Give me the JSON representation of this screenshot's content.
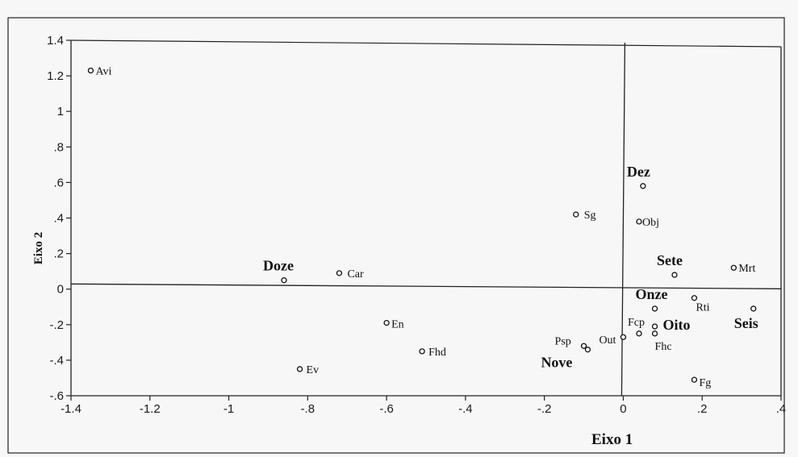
{
  "chart_data": {
    "type": "scatter",
    "xlabel": "Eixo 1",
    "ylabel": "Eixo 2",
    "xlim": [
      -1.4,
      0.4
    ],
    "ylim": [
      -0.6,
      1.4
    ],
    "xticks": [
      "-1.4",
      "-1.2",
      "-1",
      "-.8",
      "-.6",
      "-.4",
      "-.2",
      "0",
      ".2",
      ".4"
    ],
    "yticks": [
      "-.6",
      "-.4",
      "-.2",
      "0",
      ".2",
      ".4",
      ".6",
      ".8",
      "1",
      "1.2",
      "1.4"
    ],
    "grid": false,
    "reference_lines": {
      "horizontal_y": 0.02,
      "vertical_x": 0.0
    },
    "points": [
      {
        "label": "Avi",
        "x": -1.35,
        "y": 1.23,
        "group": "category"
      },
      {
        "label": "Dez",
        "x": 0.05,
        "y": 0.58,
        "group": "class"
      },
      {
        "label": "Sg",
        "x": -0.12,
        "y": 0.42,
        "group": "category"
      },
      {
        "label": "Obj",
        "x": 0.04,
        "y": 0.38,
        "group": "category"
      },
      {
        "label": "Doze",
        "x": -0.86,
        "y": 0.05,
        "group": "class"
      },
      {
        "label": "Car",
        "x": -0.72,
        "y": 0.09,
        "group": "category"
      },
      {
        "label": "Sete",
        "x": 0.13,
        "y": 0.08,
        "group": "class"
      },
      {
        "label": "Mrt",
        "x": 0.28,
        "y": 0.12,
        "group": "category"
      },
      {
        "label": "Onze",
        "x": 0.08,
        "y": -0.11,
        "group": "class"
      },
      {
        "label": "Rti",
        "x": 0.18,
        "y": -0.05,
        "group": "category"
      },
      {
        "label": "Seis",
        "x": 0.33,
        "y": -0.11,
        "group": "class"
      },
      {
        "label": "En",
        "x": -0.6,
        "y": -0.19,
        "group": "category"
      },
      {
        "label": "Fcp",
        "x": 0.04,
        "y": -0.25,
        "group": "category"
      },
      {
        "label": "Oito",
        "x": 0.08,
        "y": -0.21,
        "group": "class"
      },
      {
        "label": "Fhc",
        "x": 0.08,
        "y": -0.25,
        "group": "category"
      },
      {
        "label": "Psp",
        "x": -0.1,
        "y": -0.32,
        "group": "category"
      },
      {
        "label": "Out",
        "x": 0.0,
        "y": -0.27,
        "group": "category"
      },
      {
        "label": "Fhd",
        "x": -0.51,
        "y": -0.35,
        "group": "category"
      },
      {
        "label": "Nove",
        "x": -0.09,
        "y": -0.34,
        "group": "class"
      },
      {
        "label": "Ev",
        "x": -0.82,
        "y": -0.45,
        "group": "category"
      },
      {
        "label": "Fg",
        "x": 0.18,
        "y": -0.51,
        "group": "category"
      }
    ]
  }
}
